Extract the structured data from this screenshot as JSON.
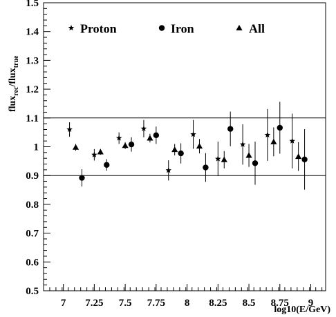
{
  "chart_data": {
    "type": "scatter",
    "title": "",
    "xlabel": "log10(E/GeV)",
    "ylabel": {
      "base1": "flux",
      "sub1": "rec",
      "sep": "/flux",
      "sub2": "true"
    },
    "xlim": [
      6.84,
      9.12
    ],
    "ylim": [
      0.5,
      1.5
    ],
    "xticks": [
      {
        "value": 7,
        "label": "7"
      },
      {
        "value": 7.25,
        "label": "7.25"
      },
      {
        "value": 7.5,
        "label": "7.5"
      },
      {
        "value": 7.75,
        "label": "7.75"
      },
      {
        "value": 8,
        "label": "8"
      },
      {
        "value": 8.25,
        "label": "8.25"
      },
      {
        "value": 8.5,
        "label": "8.5"
      },
      {
        "value": 8.75,
        "label": "8.75"
      },
      {
        "value": 9,
        "label": "9"
      }
    ],
    "yticks": [
      {
        "value": 0.5,
        "label": "0.5"
      },
      {
        "value": 0.6,
        "label": "0.6"
      },
      {
        "value": 0.7,
        "label": "0.7"
      },
      {
        "value": 0.8,
        "label": "0.8"
      },
      {
        "value": 0.9,
        "label": "0.9"
      },
      {
        "value": 1.0,
        "label": "1"
      },
      {
        "value": 1.1,
        "label": "1.1"
      },
      {
        "value": 1.2,
        "label": "1.2"
      },
      {
        "value": 1.3,
        "label": "1.3"
      },
      {
        "value": 1.4,
        "label": "1.4"
      },
      {
        "value": 1.5,
        "label": "1.5"
      }
    ],
    "reference_lines": [
      0.9,
      1.1
    ],
    "grid": false,
    "legend_position": "top",
    "series": [
      {
        "name": "Proton",
        "marker": "star",
        "points": [
          {
            "x": 7.05,
            "y": 1.06,
            "err": 0.025
          },
          {
            "x": 7.25,
            "y": 0.972,
            "err": 0.02
          },
          {
            "x": 7.45,
            "y": 1.03,
            "err": 0.02
          },
          {
            "x": 7.65,
            "y": 1.063,
            "err": 0.03
          },
          {
            "x": 7.85,
            "y": 0.918,
            "err": 0.035
          },
          {
            "x": 8.05,
            "y": 1.043,
            "err": 0.05
          },
          {
            "x": 8.25,
            "y": 0.958,
            "err": 0.06
          },
          {
            "x": 8.45,
            "y": 1.008,
            "err": 0.07
          },
          {
            "x": 8.65,
            "y": 1.041,
            "err": 0.09
          },
          {
            "x": 8.85,
            "y": 1.02,
            "err": 0.095
          }
        ]
      },
      {
        "name": "Iron",
        "marker": "circle",
        "points": [
          {
            "x": 7.15,
            "y": 0.892,
            "err": 0.03
          },
          {
            "x": 7.35,
            "y": 0.937,
            "err": 0.02
          },
          {
            "x": 7.55,
            "y": 1.008,
            "err": 0.025
          },
          {
            "x": 7.75,
            "y": 1.04,
            "err": 0.03
          },
          {
            "x": 7.95,
            "y": 0.977,
            "err": 0.035
          },
          {
            "x": 8.15,
            "y": 0.928,
            "err": 0.05
          },
          {
            "x": 8.35,
            "y": 1.062,
            "err": 0.06
          },
          {
            "x": 8.55,
            "y": 0.943,
            "err": 0.075
          },
          {
            "x": 8.75,
            "y": 1.066,
            "err": 0.09
          },
          {
            "x": 8.95,
            "y": 0.956,
            "err": 0.105
          }
        ]
      },
      {
        "name": "All",
        "marker": "triangle",
        "points": [
          {
            "x": 7.1,
            "y": 0.998,
            "err": 0.012
          },
          {
            "x": 7.3,
            "y": 0.982,
            "err": 0.01
          },
          {
            "x": 7.5,
            "y": 1.004,
            "err": 0.012
          },
          {
            "x": 7.7,
            "y": 1.03,
            "err": 0.015
          },
          {
            "x": 7.9,
            "y": 0.99,
            "err": 0.02
          },
          {
            "x": 8.1,
            "y": 1.002,
            "err": 0.025
          },
          {
            "x": 8.3,
            "y": 0.955,
            "err": 0.03
          },
          {
            "x": 8.5,
            "y": 0.97,
            "err": 0.04
          },
          {
            "x": 8.7,
            "y": 1.017,
            "err": 0.05
          },
          {
            "x": 8.9,
            "y": 0.966,
            "err": 0.05
          }
        ]
      }
    ]
  }
}
